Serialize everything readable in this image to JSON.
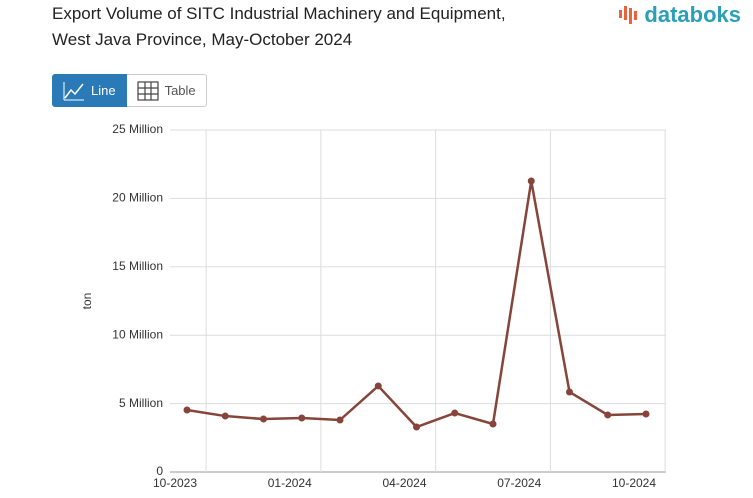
{
  "ui": {
    "logo": "databoks",
    "buttons": [
      "Line",
      "Table"
    ]
  },
  "chart_data": {
    "type": "line",
    "title": "Export Volume of SITC Industrial Machinery and Equipment,",
    "subtitle": "West Java Province, May-October 2024",
    "y_label": "ton",
    "categories": [
      "10-2023",
      null,
      null,
      "01-2024",
      null,
      null,
      "04-2024",
      null,
      null,
      "07-2024",
      null,
      null,
      "10-2024"
    ],
    "series": [
      {
        "name": "Export Volume",
        "color": "#87443a",
        "values": [
          4530000,
          4090000,
          3870000,
          3950000,
          3800000,
          6290000,
          3290000,
          4310000,
          3510000,
          21270000,
          5850000,
          4170000,
          4240000
        ]
      }
    ],
    "ylim": [
      0,
      25000000
    ],
    "yticks": [
      0,
      {
        "value": 5000000,
        "label": "5 Million"
      },
      {
        "value": 10000000,
        "label": "10 Million"
      },
      {
        "value": 15000000,
        "label": "15 Million"
      },
      {
        "value": 20000000,
        "label": "20 Million"
      },
      {
        "value": 25000000,
        "label": "25 Million"
      }
    ],
    "grid": true
  }
}
